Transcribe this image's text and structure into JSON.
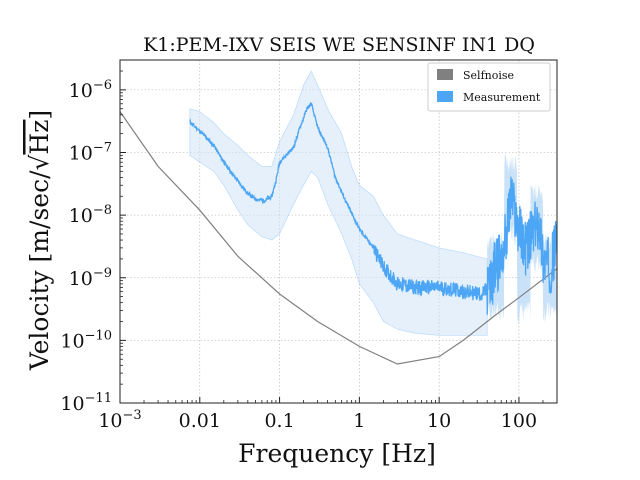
{
  "chart_data": {
    "type": "line",
    "title": "K1:PEM-IXV SEIS WE SENSINF IN1 DQ",
    "xlabel": "Frequency [Hz]",
    "ylabel_prefix": "Velocity [m/sec/",
    "ylabel_radicand": "Hz",
    "ylabel_suffix": "]",
    "xscale": "log",
    "yscale": "log",
    "xlim": [
      0.001,
      300
    ],
    "ylim": [
      1e-11,
      3e-06
    ],
    "grid": true,
    "legend_position": "top-right",
    "x_ticks": [
      {
        "value": 0.001,
        "label": "10",
        "sup": "−3"
      },
      {
        "value": 0.01,
        "label": "0.01",
        "sup": ""
      },
      {
        "value": 0.1,
        "label": "0.1",
        "sup": ""
      },
      {
        "value": 1,
        "label": "1",
        "sup": ""
      },
      {
        "value": 10,
        "label": "10",
        "sup": ""
      },
      {
        "value": 100,
        "label": "100",
        "sup": ""
      }
    ],
    "y_ticks": [
      {
        "value": 1e-11,
        "label": "10",
        "sup": "−11"
      },
      {
        "value": 1e-10,
        "label": "10",
        "sup": "−10"
      },
      {
        "value": 1e-09,
        "label": "10",
        "sup": "−9"
      },
      {
        "value": 1e-08,
        "label": "10",
        "sup": "−8"
      },
      {
        "value": 1e-07,
        "label": "10",
        "sup": "−7"
      },
      {
        "value": 1e-06,
        "label": "10",
        "sup": "−6"
      }
    ],
    "series": [
      {
        "name": "Selfnoise",
        "color": "#808080",
        "points": [
          [
            0.001,
            4.5e-07
          ],
          [
            0.003,
            6e-08
          ],
          [
            0.01,
            1.2e-08
          ],
          [
            0.03,
            2.2e-09
          ],
          [
            0.1,
            5.5e-10
          ],
          [
            0.3,
            2e-10
          ],
          [
            1,
            8e-11
          ],
          [
            3,
            4.2e-11
          ],
          [
            10,
            5.5e-11
          ],
          [
            20,
            1e-10
          ],
          [
            50,
            2.5e-10
          ],
          [
            100,
            4.8e-10
          ],
          [
            300,
            1.4e-09
          ]
        ]
      },
      {
        "name": "Measurement",
        "color": "#4da6f5",
        "band_color": "#cfe4f8",
        "median": [
          [
            0.0075,
            3.1e-07
          ],
          [
            0.01,
            2.2e-07
          ],
          [
            0.015,
            1.3e-07
          ],
          [
            0.02,
            7e-08
          ],
          [
            0.03,
            3.5e-08
          ],
          [
            0.04,
            2.2e-08
          ],
          [
            0.05,
            1.8e-08
          ],
          [
            0.065,
            1.7e-08
          ],
          [
            0.08,
            2e-08
          ],
          [
            0.09,
            3.5e-08
          ],
          [
            0.1,
            7e-08
          ],
          [
            0.12,
            9e-08
          ],
          [
            0.15,
            1.2e-07
          ],
          [
            0.18,
            2.5e-07
          ],
          [
            0.22,
            5e-07
          ],
          [
            0.25,
            6e-07
          ],
          [
            0.3,
            2.5e-07
          ],
          [
            0.4,
            1.2e-07
          ],
          [
            0.5,
            4e-08
          ],
          [
            0.7,
            1.5e-08
          ],
          [
            1,
            6e-09
          ],
          [
            1.5,
            3e-09
          ],
          [
            2,
            1.5e-09
          ],
          [
            3,
            8e-10
          ],
          [
            5,
            7e-10
          ],
          [
            10,
            7e-10
          ],
          [
            20,
            6e-10
          ],
          [
            35,
            5.5e-10
          ],
          [
            45,
            8e-10
          ],
          [
            50,
            1.5e-09
          ],
          [
            60,
            2e-09
          ],
          [
            70,
            5e-09
          ],
          [
            80,
            2e-08
          ],
          [
            90,
            1e-08
          ],
          [
            100,
            6e-09
          ],
          [
            120,
            3e-09
          ],
          [
            150,
            5e-09
          ],
          [
            180,
            8e-09
          ],
          [
            200,
            2e-09
          ],
          [
            250,
            1.5e-09
          ],
          [
            300,
            4e-09
          ]
        ],
        "band_low": [
          [
            0.0075,
            9e-08
          ],
          [
            0.01,
            7e-08
          ],
          [
            0.015,
            5e-08
          ],
          [
            0.02,
            3e-08
          ],
          [
            0.03,
            1.2e-08
          ],
          [
            0.04,
            7e-09
          ],
          [
            0.06,
            4.5e-09
          ],
          [
            0.08,
            4e-09
          ],
          [
            0.1,
            5e-09
          ],
          [
            0.15,
            1.5e-08
          ],
          [
            0.2,
            3e-08
          ],
          [
            0.25,
            5e-08
          ],
          [
            0.3,
            4e-08
          ],
          [
            0.4,
            1.5e-08
          ],
          [
            0.6,
            5e-09
          ],
          [
            0.8,
            2e-09
          ],
          [
            1,
            8e-10
          ],
          [
            1.5,
            4e-10
          ],
          [
            2,
            2e-10
          ],
          [
            3,
            1.5e-10
          ],
          [
            5,
            1.3e-10
          ],
          [
            10,
            1.2e-10
          ],
          [
            20,
            1.2e-10
          ],
          [
            40,
            1.2e-10
          ]
        ],
        "band_high": [
          [
            0.0075,
            5e-07
          ],
          [
            0.01,
            4.5e-07
          ],
          [
            0.015,
            3e-07
          ],
          [
            0.02,
            2e-07
          ],
          [
            0.03,
            1.3e-07
          ],
          [
            0.04,
            9e-08
          ],
          [
            0.06,
            6e-08
          ],
          [
            0.08,
            6e-08
          ],
          [
            0.1,
            1.5e-07
          ],
          [
            0.15,
            4e-07
          ],
          [
            0.2,
            1.2e-06
          ],
          [
            0.25,
            2e-06
          ],
          [
            0.3,
            1.2e-06
          ],
          [
            0.4,
            5e-07
          ],
          [
            0.6,
            2e-07
          ],
          [
            0.8,
            6e-08
          ],
          [
            1,
            3e-08
          ],
          [
            1.5,
            2e-08
          ],
          [
            2,
            1e-08
          ],
          [
            3,
            5e-09
          ],
          [
            5,
            4e-09
          ],
          [
            10,
            3e-09
          ],
          [
            20,
            2.5e-09
          ],
          [
            40,
            2e-09
          ]
        ]
      }
    ]
  }
}
